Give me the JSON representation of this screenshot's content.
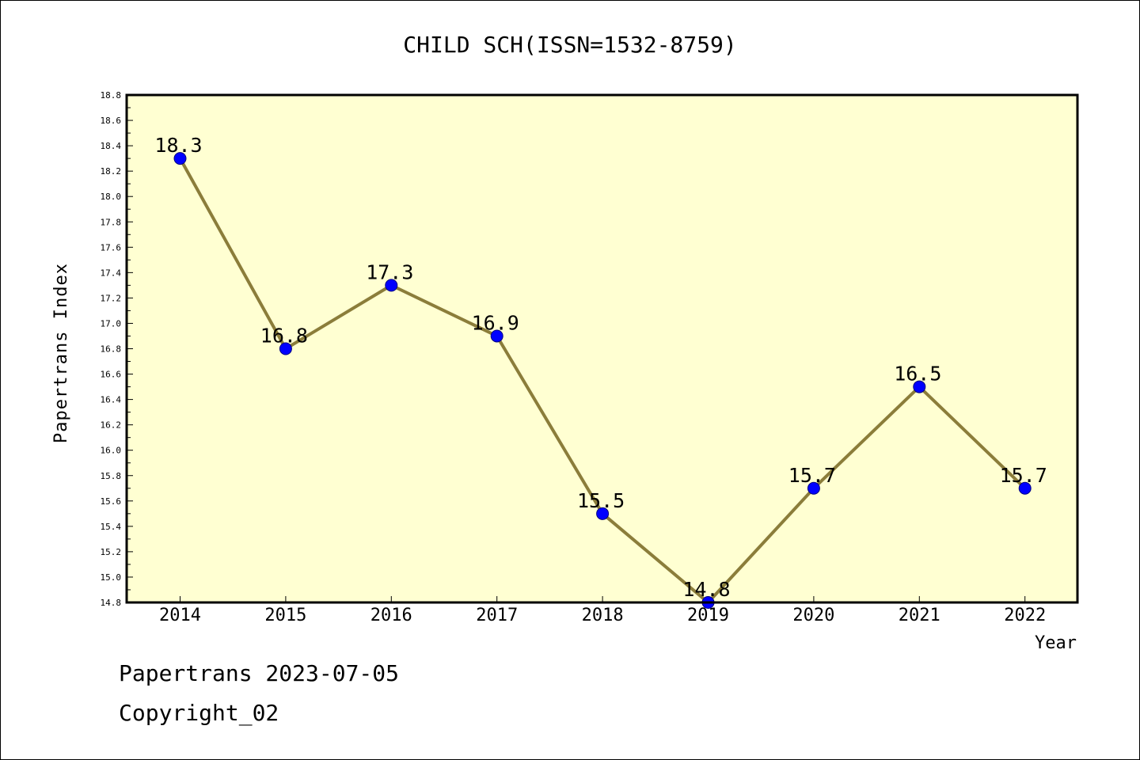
{
  "chart_data": {
    "type": "line",
    "title": "CHILD SCH(ISSN=1532-8759)",
    "xlabel": "Year",
    "ylabel": "Papertrans Index",
    "categories": [
      "2014",
      "2015",
      "2016",
      "2017",
      "2018",
      "2019",
      "2020",
      "2021",
      "2022"
    ],
    "values": [
      18.3,
      16.8,
      17.3,
      16.9,
      15.5,
      14.8,
      15.7,
      16.5,
      15.7
    ],
    "data_labels": [
      "18.3",
      "16.8",
      "17.3",
      "16.9",
      "15.5",
      "14.8",
      "15.7",
      "16.5",
      "15.7"
    ],
    "ylim": [
      14.8,
      18.8
    ],
    "yticks": [
      "14.8",
      "15.0",
      "15.2",
      "15.4",
      "15.6",
      "15.8",
      "16.0",
      "16.2",
      "16.4",
      "16.6",
      "16.8",
      "17.0",
      "17.2",
      "17.4",
      "17.6",
      "17.8",
      "18.0",
      "18.2",
      "18.4",
      "18.6",
      "18.8"
    ],
    "grid": false,
    "legend": "none",
    "colors": {
      "plot_background": "#ffffd2",
      "line": "#8b7d3a",
      "marker_fill": "#0000ff",
      "marker_edge": "#000080"
    }
  },
  "footer": {
    "line1": "Papertrans 2023-07-05",
    "line2": "Copyright_02"
  }
}
